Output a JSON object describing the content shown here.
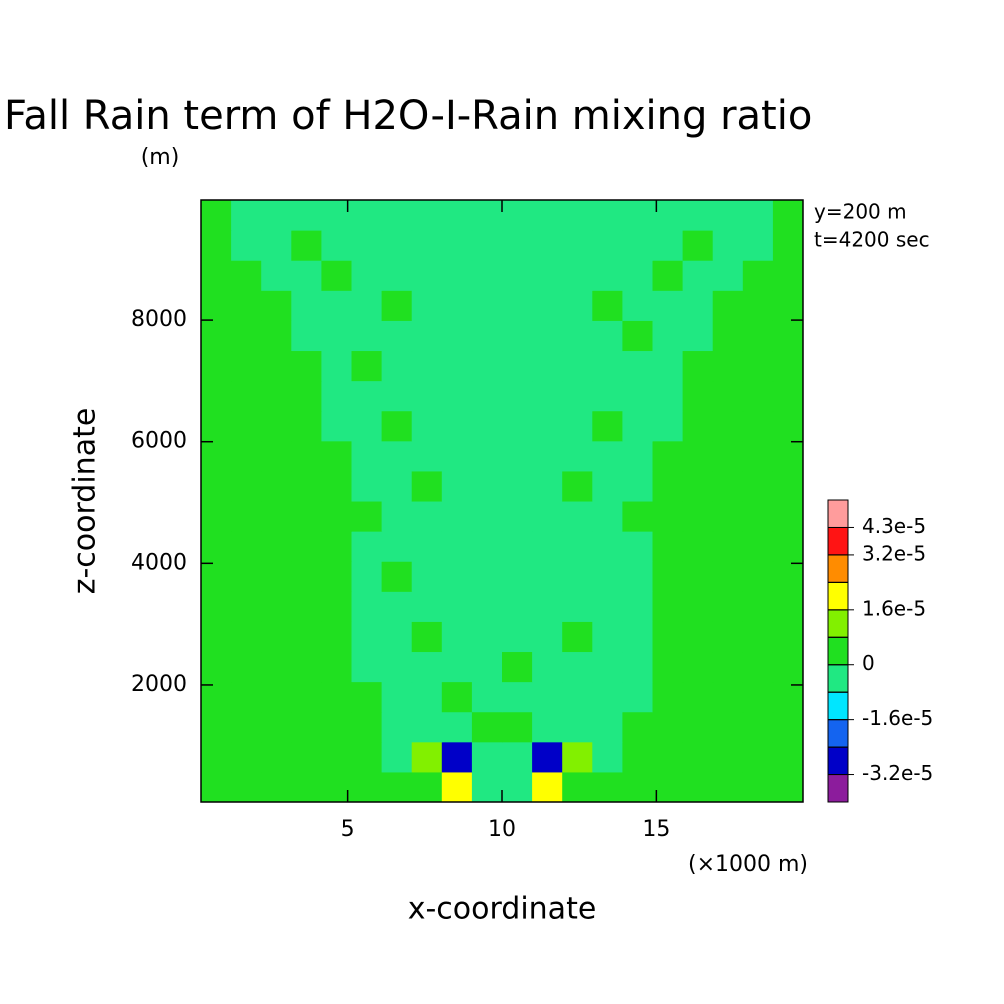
{
  "chart_data": {
    "type": "contour",
    "title": "Fall Rain term of H2O-I-Rain mixing ratio",
    "y_units": "(m)",
    "x_units": "(×1000 m)",
    "xlabel": "x-coordinate",
    "ylabel": "z-coordinate",
    "annotations": [
      "y=200 m",
      "t=4200 sec"
    ],
    "xlim": [
      0.25,
      19.75
    ],
    "ylim": [
      75,
      9975
    ],
    "xticks": [
      5,
      10,
      15
    ],
    "yticks": [
      2000,
      4000,
      6000,
      8000
    ],
    "x": [
      0.74,
      1.71,
      2.69,
      3.66,
      4.64,
      5.61,
      6.59,
      7.56,
      8.54,
      9.51,
      10.49,
      11.46,
      12.44,
      13.41,
      14.39,
      15.36,
      16.34,
      17.31,
      18.29,
      19.26
    ],
    "y": [
      322,
      817,
      1312,
      1807,
      2302,
      2797,
      3292,
      3787,
      4282,
      4777,
      5272,
      5767,
      6262,
      6757,
      7252,
      7747,
      8242,
      8737,
      9232,
      9727
    ],
    "z": [
      [
        4e-06,
        4e-06,
        4e-06,
        4e-06,
        4e-06,
        4e-06,
        4e-06,
        4e-06,
        2e-05,
        -4e-06,
        -4e-06,
        2e-05,
        4e-06,
        4e-06,
        4e-06,
        4e-06,
        4e-06,
        4e-06,
        4e-06,
        4e-06
      ],
      [
        4e-06,
        4e-06,
        4e-06,
        4e-06,
        4e-06,
        4e-06,
        -4e-06,
        1.2e-05,
        -2.8e-05,
        -4e-06,
        -4e-06,
        -2.8e-05,
        1.2e-05,
        -4e-06,
        4e-06,
        4e-06,
        4e-06,
        4e-06,
        4e-06,
        4e-06
      ],
      [
        4e-06,
        4e-06,
        4e-06,
        4e-06,
        4e-06,
        4e-06,
        -4e-06,
        -4e-06,
        -4e-06,
        4e-06,
        4e-06,
        -4e-06,
        -4e-06,
        -4e-06,
        4e-06,
        4e-06,
        4e-06,
        4e-06,
        4e-06,
        4e-06
      ],
      [
        4e-06,
        4e-06,
        4e-06,
        4e-06,
        4e-06,
        4e-06,
        -4e-06,
        -4e-06,
        4e-06,
        -4e-06,
        -4e-06,
        -4e-06,
        -4e-06,
        -4e-06,
        -4e-06,
        4e-06,
        4e-06,
        4e-06,
        4e-06,
        4e-06
      ],
      [
        4e-06,
        4e-06,
        4e-06,
        4e-06,
        4e-06,
        -4e-06,
        -4e-06,
        -4e-06,
        -4e-06,
        -4e-06,
        4e-06,
        -4e-06,
        -4e-06,
        -4e-06,
        -4e-06,
        4e-06,
        4e-06,
        4e-06,
        4e-06,
        4e-06
      ],
      [
        4e-06,
        4e-06,
        4e-06,
        4e-06,
        4e-06,
        -4e-06,
        -4e-06,
        4e-06,
        -4e-06,
        -4e-06,
        -4e-06,
        -4e-06,
        4e-06,
        -4e-06,
        -4e-06,
        4e-06,
        4e-06,
        4e-06,
        4e-06,
        4e-06
      ],
      [
        4e-06,
        4e-06,
        4e-06,
        4e-06,
        4e-06,
        -4e-06,
        -4e-06,
        -4e-06,
        -4e-06,
        -4e-06,
        -4e-06,
        -4e-06,
        -4e-06,
        -4e-06,
        -4e-06,
        4e-06,
        4e-06,
        4e-06,
        4e-06,
        4e-06
      ],
      [
        4e-06,
        4e-06,
        4e-06,
        4e-06,
        4e-06,
        -4e-06,
        4e-06,
        -4e-06,
        -4e-06,
        -4e-06,
        -4e-06,
        -4e-06,
        -4e-06,
        -4e-06,
        -4e-06,
        4e-06,
        4e-06,
        4e-06,
        4e-06,
        4e-06
      ],
      [
        4e-06,
        4e-06,
        4e-06,
        4e-06,
        4e-06,
        -4e-06,
        -4e-06,
        -4e-06,
        -4e-06,
        -4e-06,
        -4e-06,
        -4e-06,
        -4e-06,
        -4e-06,
        -4e-06,
        4e-06,
        4e-06,
        4e-06,
        4e-06,
        4e-06
      ],
      [
        4e-06,
        4e-06,
        4e-06,
        4e-06,
        4e-06,
        4e-06,
        -4e-06,
        -4e-06,
        -4e-06,
        -4e-06,
        -4e-06,
        -4e-06,
        -4e-06,
        -4e-06,
        4e-06,
        4e-06,
        4e-06,
        4e-06,
        4e-06,
        4e-06
      ],
      [
        4e-06,
        4e-06,
        4e-06,
        4e-06,
        4e-06,
        -4e-06,
        -4e-06,
        4e-06,
        -4e-06,
        -4e-06,
        -4e-06,
        -4e-06,
        4e-06,
        -4e-06,
        -4e-06,
        4e-06,
        4e-06,
        4e-06,
        4e-06,
        4e-06
      ],
      [
        4e-06,
        4e-06,
        4e-06,
        4e-06,
        4e-06,
        -4e-06,
        -4e-06,
        -4e-06,
        -4e-06,
        -4e-06,
        -4e-06,
        -4e-06,
        -4e-06,
        -4e-06,
        -4e-06,
        4e-06,
        4e-06,
        4e-06,
        4e-06,
        4e-06
      ],
      [
        4e-06,
        4e-06,
        4e-06,
        4e-06,
        -4e-06,
        -4e-06,
        4e-06,
        -4e-06,
        -4e-06,
        -4e-06,
        -4e-06,
        -4e-06,
        -4e-06,
        4e-06,
        -4e-06,
        -4e-06,
        4e-06,
        4e-06,
        4e-06,
        4e-06
      ],
      [
        4e-06,
        4e-06,
        4e-06,
        4e-06,
        -4e-06,
        -4e-06,
        -4e-06,
        -4e-06,
        -4e-06,
        -4e-06,
        -4e-06,
        -4e-06,
        -4e-06,
        -4e-06,
        -4e-06,
        -4e-06,
        4e-06,
        4e-06,
        4e-06,
        4e-06
      ],
      [
        4e-06,
        4e-06,
        4e-06,
        4e-06,
        -4e-06,
        4e-06,
        -4e-06,
        -4e-06,
        -4e-06,
        -4e-06,
        -4e-06,
        -4e-06,
        -4e-06,
        -4e-06,
        -4e-06,
        -4e-06,
        4e-06,
        4e-06,
        4e-06,
        4e-06
      ],
      [
        4e-06,
        4e-06,
        4e-06,
        -4e-06,
        -4e-06,
        -4e-06,
        -4e-06,
        -4e-06,
        -4e-06,
        -4e-06,
        -4e-06,
        -4e-06,
        -4e-06,
        -4e-06,
        4e-06,
        -4e-06,
        -4e-06,
        4e-06,
        4e-06,
        4e-06
      ],
      [
        4e-06,
        4e-06,
        4e-06,
        -4e-06,
        -4e-06,
        -4e-06,
        4e-06,
        -4e-06,
        -4e-06,
        -4e-06,
        -4e-06,
        -4e-06,
        -4e-06,
        4e-06,
        -4e-06,
        -4e-06,
        -4e-06,
        4e-06,
        4e-06,
        4e-06
      ],
      [
        4e-06,
        4e-06,
        -4e-06,
        -4e-06,
        4e-06,
        -4e-06,
        -4e-06,
        -4e-06,
        -4e-06,
        -4e-06,
        -4e-06,
        -4e-06,
        -4e-06,
        -4e-06,
        -4e-06,
        4e-06,
        -4e-06,
        -4e-06,
        4e-06,
        4e-06
      ],
      [
        4e-06,
        -4e-06,
        -4e-06,
        4e-06,
        -4e-06,
        -4e-06,
        -4e-06,
        -4e-06,
        -4e-06,
        -4e-06,
        -4e-06,
        -4e-06,
        -4e-06,
        -4e-06,
        -4e-06,
        -4e-06,
        4e-06,
        -4e-06,
        -4e-06,
        4e-06
      ],
      [
        4e-06,
        -4e-06,
        -4e-06,
        -4e-06,
        -4e-06,
        -4e-06,
        -4e-06,
        -4e-06,
        -4e-06,
        -4e-06,
        -4e-06,
        -4e-06,
        -4e-06,
        -4e-06,
        -4e-06,
        -4e-06,
        -4e-06,
        -4e-06,
        -4e-06,
        4e-06
      ]
    ],
    "levels": [
      -3.2e-05,
      -2.4e-05,
      -1.6e-05,
      -8e-06,
      0,
      8e-06,
      1.6e-05,
      2.4e-05,
      3.2e-05,
      4.3e-05
    ],
    "colors": [
      "#8c1c9c",
      "#0000c8",
      "#1464f0",
      "#00e6ff",
      "#20e882",
      "#20e020",
      "#82f000",
      "#ffff00",
      "#ff8c00",
      "#ff1414",
      "#ff9c9c"
    ],
    "colorbar_ticks": [
      {
        "value": 4.3e-05,
        "label": "4.3e-5"
      },
      {
        "value": 3.2e-05,
        "label": "3.2e-5"
      },
      {
        "value": 1.6e-05,
        "label": "1.6e-5"
      },
      0,
      {
        "value": -1.6e-05,
        "label": "-1.6e-5"
      },
      {
        "value": -3.2e-05,
        "label": "-3.2e-5"
      }
    ]
  }
}
